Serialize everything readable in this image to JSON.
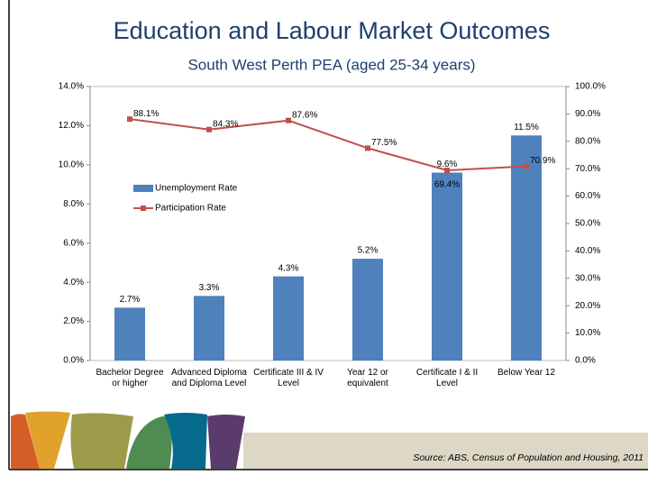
{
  "chart_data": {
    "type": "bar-line",
    "title": "Education and Labour Market Outcomes",
    "subtitle": "South West Perth PEA (aged 25-34 years)",
    "source": "Source: ABS, Census of Population and Housing, 2011",
    "categories": [
      "Bachelor Degree or higher",
      "Advanced Diploma and Diploma Level",
      "Certificate III & IV Level",
      "Year 12 or equivalent",
      "Certificate I & II Level",
      "Below Year 12"
    ],
    "series": [
      {
        "name": "Unemployment Rate",
        "type": "bar",
        "color": "#4f81bd",
        "axis": "y",
        "values": [
          2.7,
          3.3,
          4.3,
          5.2,
          9.6,
          11.5
        ],
        "value_labels": [
          "2.7%",
          "3.3%",
          "4.3%",
          "5.2%",
          "9.6%",
          "11.5%"
        ]
      },
      {
        "name": "Participation Rate",
        "type": "line",
        "color": "#c0504d",
        "axis": "y2",
        "values": [
          88.1,
          84.3,
          87.6,
          77.5,
          69.4,
          70.9
        ],
        "value_labels": [
          "88.1%",
          "84.3%",
          "87.6%",
          "77.5%",
          "69.4%",
          "70.9%"
        ]
      }
    ],
    "ylim": [
      0,
      14
    ],
    "yticks": [
      {
        "value": 0,
        "label": "0.0%"
      },
      {
        "value": 2,
        "label": "2.0%"
      },
      {
        "value": 4,
        "label": "4.0%"
      },
      {
        "value": 6,
        "label": "6.0%"
      },
      {
        "value": 8,
        "label": "8.0%"
      },
      {
        "value": 10,
        "label": "10.0%"
      },
      {
        "value": 12,
        "label": "12.0%"
      },
      {
        "value": 14,
        "label": "14.0%"
      }
    ],
    "y2lim": [
      0,
      100
    ],
    "y2ticks": [
      {
        "value": 0,
        "label": "0.0%"
      },
      {
        "value": 10,
        "label": "10.0%"
      },
      {
        "value": 20,
        "label": "20.0%"
      },
      {
        "value": 30,
        "label": "30.0%"
      },
      {
        "value": 40,
        "label": "40.0%"
      },
      {
        "value": 50,
        "label": "50.0%"
      },
      {
        "value": 60,
        "label": "60.0%"
      },
      {
        "value": 70,
        "label": "70.0%"
      },
      {
        "value": 80,
        "label": "80.0%"
      },
      {
        "value": 90,
        "label": "90.0%"
      },
      {
        "value": 100,
        "label": "100.0%"
      }
    ],
    "legend": "left"
  }
}
